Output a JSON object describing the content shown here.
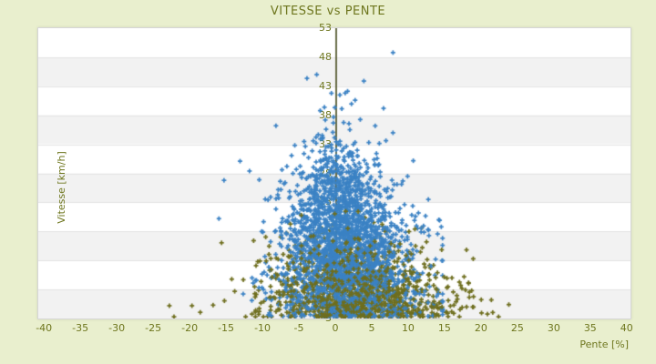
{
  "page": {
    "background": "#e9efce",
    "text_color": "#6e761e"
  },
  "chart_data": {
    "type": "scatter",
    "title": "VITESSE vs PENTE",
    "xlabel": "Pente [%]",
    "ylabel": "Vitesse [km/h]",
    "xlim": [
      -40.9,
      40.4
    ],
    "ylim": [
      3,
      53
    ],
    "xticks": [
      -40,
      -35,
      -30,
      -25,
      -20,
      -15,
      -10,
      -5,
      0,
      5,
      10,
      15,
      20,
      25,
      30,
      35,
      40
    ],
    "yticks": [
      3,
      8,
      13,
      18,
      23,
      28,
      33,
      38,
      43,
      48,
      53
    ],
    "legend": "none",
    "grid": {
      "band_colors": [
        "#ffffff",
        "#f2f2f2"
      ],
      "boundary_color": "#e4e4e4"
    },
    "zero_line": {
      "x": 0,
      "color": "#454a1c",
      "width": 1.6
    },
    "marker": {
      "shape": "plus",
      "size": 5,
      "thickness": 1.7
    },
    "seed": 987123,
    "series": [
      {
        "name": "olive-under",
        "color": "#6e6e1e",
        "count": 900,
        "y": {
          "base": 3,
          "mu": 3.2,
          "sigma": 5.2,
          "min": 3.3,
          "max": 30
        },
        "x": {
          "c0": 4.0,
          "cy": -0.12,
          "s0": 7.0,
          "sy": -0.09,
          "min": -24.2,
          "max": 24.6
        }
      },
      {
        "name": "blue",
        "color": "#3b82c4",
        "count": 2300,
        "y": {
          "base": 3,
          "mu": 13.0,
          "sigma": 8.2,
          "min": 3.4,
          "max": 49.5
        },
        "x": {
          "c0": 2.0,
          "cy": -0.05,
          "s0": 5.4,
          "sy": -0.065,
          "min": -16.5,
          "max": 14.6
        }
      },
      {
        "name": "olive-over",
        "color": "#6e6e1e",
        "count": 320,
        "y": {
          "base": 3,
          "mu": 3.6,
          "sigma": 5.6,
          "min": 3.3,
          "max": 28
        },
        "x": {
          "c0": 4.0,
          "cy": -0.12,
          "s0": 7.0,
          "sy": -0.09,
          "min": -23.0,
          "max": 24.0
        }
      }
    ],
    "extra_points": [
      {
        "color": "#3b82c4",
        "points": [
          [
            7.8,
            48.8
          ],
          [
            3.8,
            43.9
          ],
          [
            6.5,
            39.2
          ],
          [
            0.5,
            41.5
          ],
          [
            -2.2,
            38.8
          ],
          [
            2.6,
            40.6
          ],
          [
            -11.9,
            28.4
          ],
          [
            -13.2,
            30.1
          ],
          [
            -15.4,
            26.8
          ],
          [
            -16.1,
            20.2
          ],
          [
            -11.4,
            9.1
          ],
          [
            -10.6,
            8.3
          ],
          [
            -10.0,
            8.0
          ],
          [
            -9.7,
            7.4
          ]
        ]
      },
      {
        "color": "#6e6e1e",
        "points": [
          [
            -22.9,
            5.2
          ],
          [
            -19.8,
            5.2
          ],
          [
            -16.9,
            5.3
          ],
          [
            23.7,
            5.4
          ],
          [
            21.3,
            6.2
          ],
          [
            17.9,
            5.0
          ],
          [
            15.2,
            8.3
          ],
          [
            18.6,
            7.8
          ],
          [
            12.4,
            16.2
          ],
          [
            10.8,
            18.4
          ]
        ]
      }
    ]
  }
}
